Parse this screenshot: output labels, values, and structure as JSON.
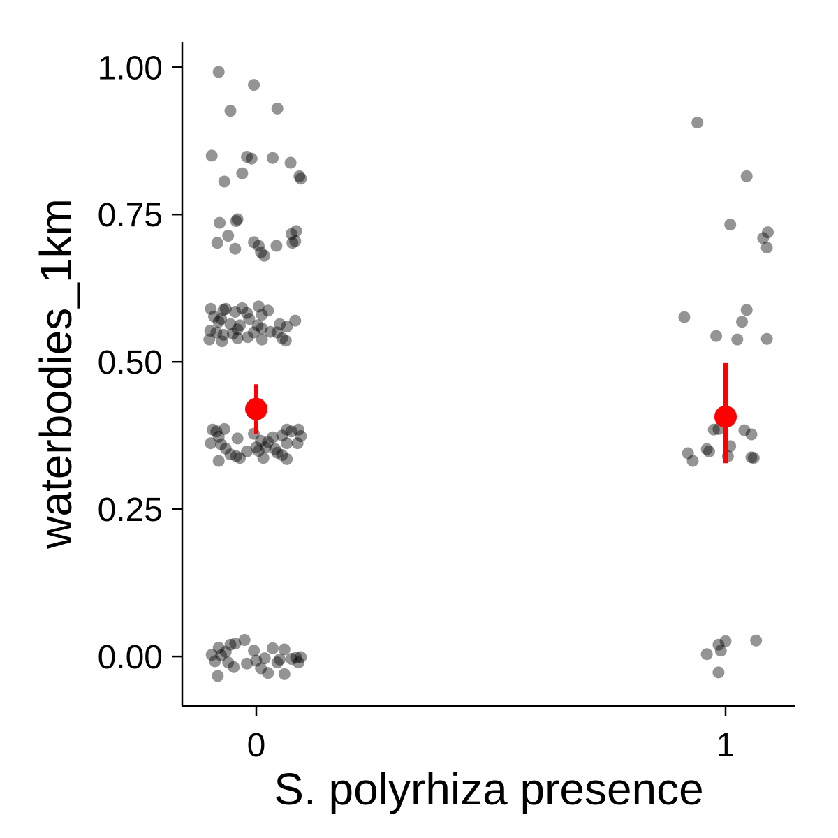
{
  "chart_data": {
    "type": "scatter",
    "title": "",
    "xlabel": "S. polyrhiza presence",
    "ylabel": "waterbodies_1km",
    "x_categories": [
      "0",
      "1"
    ],
    "ylim": [
      -0.084,
      1.043
    ],
    "y_ticks": [
      0.0,
      0.25,
      0.5,
      0.75,
      1.0
    ],
    "y_tick_labels": [
      "0.00",
      "0.25",
      "0.50",
      "0.75",
      "1.00"
    ],
    "grid": false,
    "legend": "none",
    "colors": {
      "points": "#000000",
      "summary": "#ff0000"
    },
    "point_opacity": 0.42,
    "points": [
      {
        "group": 0,
        "x": -0.08,
        "y": 0.992
      },
      {
        "group": 0,
        "x": -0.005,
        "y": 0.97
      },
      {
        "group": 0,
        "x": -0.055,
        "y": 0.926
      },
      {
        "group": 0,
        "x": 0.045,
        "y": 0.93
      },
      {
        "group": 0,
        "x": -0.095,
        "y": 0.85
      },
      {
        "group": 0,
        "x": -0.02,
        "y": 0.848
      },
      {
        "group": 0,
        "x": -0.01,
        "y": 0.845
      },
      {
        "group": 0,
        "x": 0.035,
        "y": 0.846
      },
      {
        "group": 0,
        "x": 0.073,
        "y": 0.838
      },
      {
        "group": 0,
        "x": -0.03,
        "y": 0.82
      },
      {
        "group": 0,
        "x": -0.068,
        "y": 0.806
      },
      {
        "group": 0,
        "x": 0.092,
        "y": 0.815
      },
      {
        "group": 0,
        "x": 0.095,
        "y": 0.811
      },
      {
        "group": 0,
        "x": -0.04,
        "y": 0.742
      },
      {
        "group": 0,
        "x": -0.078,
        "y": 0.736
      },
      {
        "group": 0,
        "x": -0.043,
        "y": 0.739
      },
      {
        "group": 0,
        "x": 0.085,
        "y": 0.722
      },
      {
        "group": 0,
        "x": 0.075,
        "y": 0.717
      },
      {
        "group": 0,
        "x": -0.06,
        "y": 0.714
      },
      {
        "group": 0,
        "x": -0.083,
        "y": 0.702
      },
      {
        "group": 0,
        "x": -0.005,
        "y": 0.703
      },
      {
        "group": 0,
        "x": 0.005,
        "y": 0.697
      },
      {
        "group": 0,
        "x": 0.043,
        "y": 0.697
      },
      {
        "group": 0,
        "x": 0.077,
        "y": 0.702
      },
      {
        "group": 0,
        "x": 0.083,
        "y": 0.705
      },
      {
        "group": 0,
        "x": -0.045,
        "y": 0.692
      },
      {
        "group": 0,
        "x": 0.01,
        "y": 0.686
      },
      {
        "group": 0,
        "x": 0.017,
        "y": 0.68
      },
      {
        "group": 0,
        "x": -0.097,
        "y": 0.59
      },
      {
        "group": 0,
        "x": -0.07,
        "y": 0.588
      },
      {
        "group": 0,
        "x": -0.065,
        "y": 0.59
      },
      {
        "group": 0,
        "x": -0.03,
        "y": 0.591
      },
      {
        "group": 0,
        "x": 0.005,
        "y": 0.594
      },
      {
        "group": 0,
        "x": -0.045,
        "y": 0.585
      },
      {
        "group": 0,
        "x": 0.025,
        "y": 0.587
      },
      {
        "group": 0,
        "x": -0.02,
        "y": 0.583
      },
      {
        "group": 0,
        "x": -0.09,
        "y": 0.577
      },
      {
        "group": 0,
        "x": -0.075,
        "y": 0.573
      },
      {
        "group": 0,
        "x": -0.08,
        "y": 0.568
      },
      {
        "group": 0,
        "x": -0.015,
        "y": 0.573
      },
      {
        "group": 0,
        "x": 0.012,
        "y": 0.58
      },
      {
        "group": 0,
        "x": 0.083,
        "y": 0.57
      },
      {
        "group": 0,
        "x": -0.055,
        "y": 0.564
      },
      {
        "group": 0,
        "x": -0.035,
        "y": 0.562
      },
      {
        "group": 0,
        "x": 0.003,
        "y": 0.562
      },
      {
        "group": 0,
        "x": 0.05,
        "y": 0.564
      },
      {
        "group": 0,
        "x": -0.098,
        "y": 0.553
      },
      {
        "group": 0,
        "x": -0.085,
        "y": 0.55
      },
      {
        "group": 0,
        "x": -0.04,
        "y": 0.555
      },
      {
        "group": 0,
        "x": 0.012,
        "y": 0.557
      },
      {
        "group": 0,
        "x": 0.065,
        "y": 0.56
      },
      {
        "group": 0,
        "x": -0.07,
        "y": 0.546
      },
      {
        "group": 0,
        "x": -0.05,
        "y": 0.548
      },
      {
        "group": 0,
        "x": -0.005,
        "y": 0.55
      },
      {
        "group": 0,
        "x": 0.03,
        "y": 0.551
      },
      {
        "group": 0,
        "x": 0.045,
        "y": 0.55
      },
      {
        "group": 0,
        "x": -0.1,
        "y": 0.538
      },
      {
        "group": 0,
        "x": -0.073,
        "y": 0.535
      },
      {
        "group": 0,
        "x": -0.04,
        "y": 0.54
      },
      {
        "group": 0,
        "x": -0.018,
        "y": 0.542
      },
      {
        "group": 0,
        "x": 0.012,
        "y": 0.538
      },
      {
        "group": 0,
        "x": 0.055,
        "y": 0.54
      },
      {
        "group": 0,
        "x": 0.063,
        "y": 0.536
      },
      {
        "group": 0,
        "x": -0.093,
        "y": 0.385
      },
      {
        "group": 0,
        "x": -0.068,
        "y": 0.386
      },
      {
        "group": 0,
        "x": -0.085,
        "y": 0.382
      },
      {
        "group": 0,
        "x": 0.065,
        "y": 0.385
      },
      {
        "group": 0,
        "x": 0.09,
        "y": 0.385
      },
      {
        "group": 0,
        "x": 0.075,
        "y": 0.382
      },
      {
        "group": 0,
        "x": -0.005,
        "y": 0.378
      },
      {
        "group": 0,
        "x": 0.055,
        "y": 0.375
      },
      {
        "group": 0,
        "x": -0.08,
        "y": 0.373
      },
      {
        "group": 0,
        "x": -0.04,
        "y": 0.37
      },
      {
        "group": 0,
        "x": 0.035,
        "y": 0.372
      },
      {
        "group": 0,
        "x": 0.095,
        "y": 0.374
      },
      {
        "group": 0,
        "x": 0.01,
        "y": 0.366
      },
      {
        "group": 0,
        "x": 0.025,
        "y": 0.364
      },
      {
        "group": 0,
        "x": -0.097,
        "y": 0.362
      },
      {
        "group": 0,
        "x": -0.075,
        "y": 0.36
      },
      {
        "group": 0,
        "x": 0.065,
        "y": 0.362
      },
      {
        "group": 0,
        "x": 0.088,
        "y": 0.362
      },
      {
        "group": 0,
        "x": 0.0,
        "y": 0.355
      },
      {
        "group": 0,
        "x": -0.065,
        "y": 0.353
      },
      {
        "group": 0,
        "x": 0.02,
        "y": 0.355
      },
      {
        "group": 0,
        "x": 0.04,
        "y": 0.352
      },
      {
        "group": 0,
        "x": -0.02,
        "y": 0.348
      },
      {
        "group": 0,
        "x": 0.005,
        "y": 0.349
      },
      {
        "group": 0,
        "x": 0.045,
        "y": 0.346
      },
      {
        "group": 0,
        "x": -0.055,
        "y": 0.343
      },
      {
        "group": 0,
        "x": -0.043,
        "y": 0.34
      },
      {
        "group": 0,
        "x": 0.055,
        "y": 0.342
      },
      {
        "group": 0,
        "x": -0.035,
        "y": 0.337
      },
      {
        "group": 0,
        "x": 0.015,
        "y": 0.337
      },
      {
        "group": 0,
        "x": 0.065,
        "y": 0.335
      },
      {
        "group": 0,
        "x": -0.08,
        "y": 0.332
      },
      {
        "group": 0,
        "x": -0.095,
        "y": 0.003
      },
      {
        "group": 0,
        "x": -0.08,
        "y": 0.015
      },
      {
        "group": 0,
        "x": -0.065,
        "y": 0.008
      },
      {
        "group": 0,
        "x": -0.055,
        "y": 0.02
      },
      {
        "group": 0,
        "x": -0.075,
        "y": 0.002
      },
      {
        "group": 0,
        "x": -0.045,
        "y": 0.022
      },
      {
        "group": 0,
        "x": -0.025,
        "y": 0.028
      },
      {
        "group": 0,
        "x": -0.005,
        "y": 0.01
      },
      {
        "group": 0,
        "x": 0.035,
        "y": 0.014
      },
      {
        "group": 0,
        "x": 0.06,
        "y": 0.012
      },
      {
        "group": 0,
        "x": -0.088,
        "y": -0.008
      },
      {
        "group": 0,
        "x": -0.06,
        "y": -0.01
      },
      {
        "group": 0,
        "x": -0.048,
        "y": -0.018
      },
      {
        "group": 0,
        "x": -0.02,
        "y": -0.012
      },
      {
        "group": 0,
        "x": 0.0,
        "y": -0.007
      },
      {
        "group": 0,
        "x": 0.018,
        "y": -0.003
      },
      {
        "group": 0,
        "x": 0.045,
        "y": -0.01
      },
      {
        "group": 0,
        "x": 0.05,
        "y": -0.005
      },
      {
        "group": 0,
        "x": 0.075,
        "y": -0.004
      },
      {
        "group": 0,
        "x": 0.085,
        "y": -0.002
      },
      {
        "group": 0,
        "x": 0.095,
        "y": -0.001
      },
      {
        "group": 0,
        "x": 0.09,
        "y": -0.01
      },
      {
        "group": 0,
        "x": 0.01,
        "y": -0.02
      },
      {
        "group": 0,
        "x": 0.025,
        "y": -0.028
      },
      {
        "group": 0,
        "x": 0.06,
        "y": -0.03
      },
      {
        "group": 0,
        "x": -0.082,
        "y": -0.033
      },
      {
        "group": 1,
        "x": -0.06,
        "y": 0.906
      },
      {
        "group": 1,
        "x": 0.045,
        "y": 0.815
      },
      {
        "group": 1,
        "x": 0.01,
        "y": 0.733
      },
      {
        "group": 1,
        "x": 0.09,
        "y": 0.72
      },
      {
        "group": 1,
        "x": 0.08,
        "y": 0.71
      },
      {
        "group": 1,
        "x": 0.088,
        "y": 0.694
      },
      {
        "group": 1,
        "x": -0.088,
        "y": 0.576
      },
      {
        "group": 1,
        "x": 0.045,
        "y": 0.588
      },
      {
        "group": 1,
        "x": 0.035,
        "y": 0.568
      },
      {
        "group": 1,
        "x": -0.02,
        "y": 0.544
      },
      {
        "group": 1,
        "x": 0.025,
        "y": 0.538
      },
      {
        "group": 1,
        "x": 0.088,
        "y": 0.539
      },
      {
        "group": 1,
        "x": -0.025,
        "y": 0.385
      },
      {
        "group": 1,
        "x": -0.015,
        "y": 0.386
      },
      {
        "group": 1,
        "x": 0.04,
        "y": 0.384
      },
      {
        "group": 1,
        "x": 0.055,
        "y": 0.377
      },
      {
        "group": 1,
        "x": -0.04,
        "y": 0.352
      },
      {
        "group": 1,
        "x": 0.01,
        "y": 0.357
      },
      {
        "group": 1,
        "x": -0.08,
        "y": 0.345
      },
      {
        "group": 1,
        "x": -0.035,
        "y": 0.348
      },
      {
        "group": 1,
        "x": 0.005,
        "y": 0.34
      },
      {
        "group": 1,
        "x": 0.06,
        "y": 0.337
      },
      {
        "group": 1,
        "x": 0.055,
        "y": 0.338
      },
      {
        "group": 1,
        "x": -0.07,
        "y": 0.332
      },
      {
        "group": 1,
        "x": -0.04,
        "y": 0.004
      },
      {
        "group": 1,
        "x": -0.015,
        "y": 0.02
      },
      {
        "group": 1,
        "x": 0.0,
        "y": 0.026
      },
      {
        "group": 1,
        "x": 0.065,
        "y": 0.027
      },
      {
        "group": 1,
        "x": -0.01,
        "y": 0.01
      },
      {
        "group": 1,
        "x": -0.015,
        "y": -0.027
      }
    ],
    "summary": [
      {
        "group": 0,
        "mean": 0.42,
        "lower": 0.378,
        "upper": 0.462
      },
      {
        "group": 1,
        "mean": 0.407,
        "lower": 0.328,
        "upper": 0.498
      }
    ]
  }
}
